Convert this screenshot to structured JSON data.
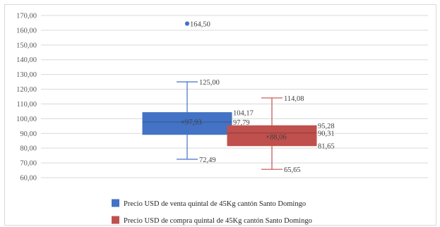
{
  "chart_data": {
    "type": "boxplot",
    "title": "",
    "xlabel": "",
    "ylabel": "",
    "ylim": [
      60,
      170
    ],
    "y_tick_step": 10,
    "y_tick_labels": [
      "60,00",
      "70,00",
      "80,00",
      "90,00",
      "100,00",
      "110,00",
      "120,00",
      "130,00",
      "140,00",
      "150,00",
      "160,00",
      "170,00"
    ],
    "grid": true,
    "legend_position": "bottom",
    "series": [
      {
        "name": "Precio USD de venta quintal de 45Kg cantón Santo Domingo",
        "color": "#4472c4",
        "min": 72.49,
        "q1": 89.31,
        "median": 97.79,
        "q3": 104.17,
        "max": 125.0,
        "mean": 97.93,
        "outliers": [
          164.5
        ],
        "labels": {
          "min": "72,49",
          "q1": "89,31",
          "median": "97,79",
          "q3": "104,17",
          "max": "125,00",
          "mean": "97,93",
          "outliers": [
            "164,50"
          ]
        }
      },
      {
        "name": "Precio USD de compra quintal de 45Kg cantón Santo Domingo",
        "color": "#c0504d",
        "min": 65.65,
        "q1": 81.65,
        "median": 90.31,
        "q3": 95.28,
        "max": 114.08,
        "mean": 88.06,
        "outliers": [],
        "labels": {
          "min": "65,65",
          "q1": "81,65",
          "median": "90,31",
          "q3": "95,28",
          "max": "114,08",
          "mean": "88,06",
          "outliers": []
        }
      }
    ]
  }
}
